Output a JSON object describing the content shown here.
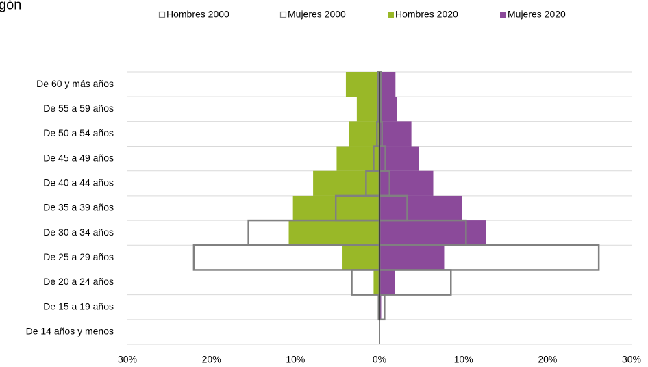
{
  "chart_data": {
    "type": "pyramid",
    "title": "gón",
    "categories": [
      "De 60 y más años",
      "De 55 a 59 años",
      "De 50 a 54 años",
      "De 45 a 49 años",
      "De 40 a 44 años",
      "De 35 a 39 años",
      "De 30 a 34 años",
      "De 25 a 29 años",
      "De 20 a 24 años",
      "De 15 a 19 años",
      "De 14 años y menos"
    ],
    "series": [
      {
        "name": "Hombres 2020",
        "color": "#99b828",
        "filled": true,
        "values": [
          -4.0,
          -2.7,
          -3.6,
          -5.1,
          -7.9,
          -10.3,
          -10.8,
          -4.4,
          -0.7,
          -0.2,
          0
        ]
      },
      {
        "name": "Mujeres 2020",
        "color": "#8b4a9a",
        "filled": true,
        "values": [
          1.9,
          2.1,
          3.8,
          4.7,
          6.4,
          9.8,
          12.7,
          7.7,
          1.8,
          0.2,
          0
        ]
      },
      {
        "name": "Hombres 2000",
        "color": "#808080",
        "filled": false,
        "values": [
          -0.2,
          -0.2,
          -0.3,
          -0.7,
          -1.6,
          -5.2,
          -15.6,
          -22.1,
          -3.3,
          -0.1,
          0
        ]
      },
      {
        "name": "Mujeres 2000",
        "color": "#808080",
        "filled": false,
        "values": [
          0.2,
          0.2,
          0.3,
          0.7,
          1.2,
          3.3,
          10.3,
          26.1,
          8.5,
          0.6,
          0
        ]
      }
    ],
    "legend_order": [
      2,
      3,
      0,
      1
    ],
    "xlim": [
      -30,
      30
    ],
    "xticks": [
      {
        "value": -30,
        "label": "30%"
      },
      {
        "value": -20,
        "label": "20%"
      },
      {
        "value": -10,
        "label": "10%"
      },
      {
        "value": 0,
        "label": "0%"
      },
      {
        "value": 10,
        "label": "10%"
      },
      {
        "value": 20,
        "label": "20%"
      },
      {
        "value": 30,
        "label": "30%"
      }
    ],
    "grid": true
  }
}
